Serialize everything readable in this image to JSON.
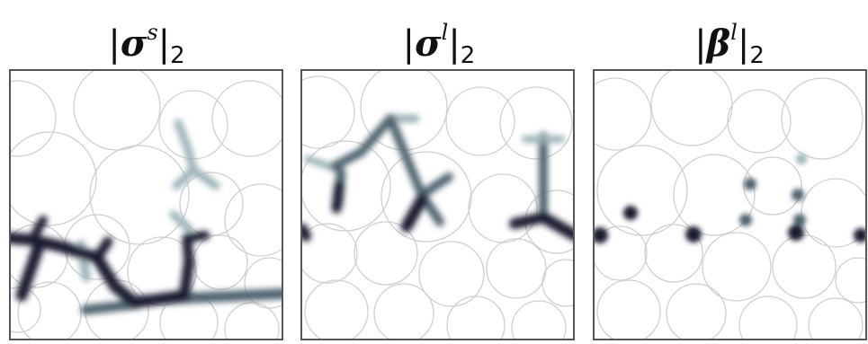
{
  "panels": [
    {
      "symbol": "σ",
      "superscript": "s",
      "subscript": "2"
    },
    {
      "symbol": "σ",
      "superscript": "l",
      "subscript": "2"
    },
    {
      "symbol": "β",
      "superscript": "l",
      "subscript": "2"
    }
  ],
  "colors": {
    "frame": "#555555",
    "circle": "#cfcfcf",
    "dark": "#1c1b33",
    "medium": "#4f6470",
    "light": "#9bb2b8"
  }
}
